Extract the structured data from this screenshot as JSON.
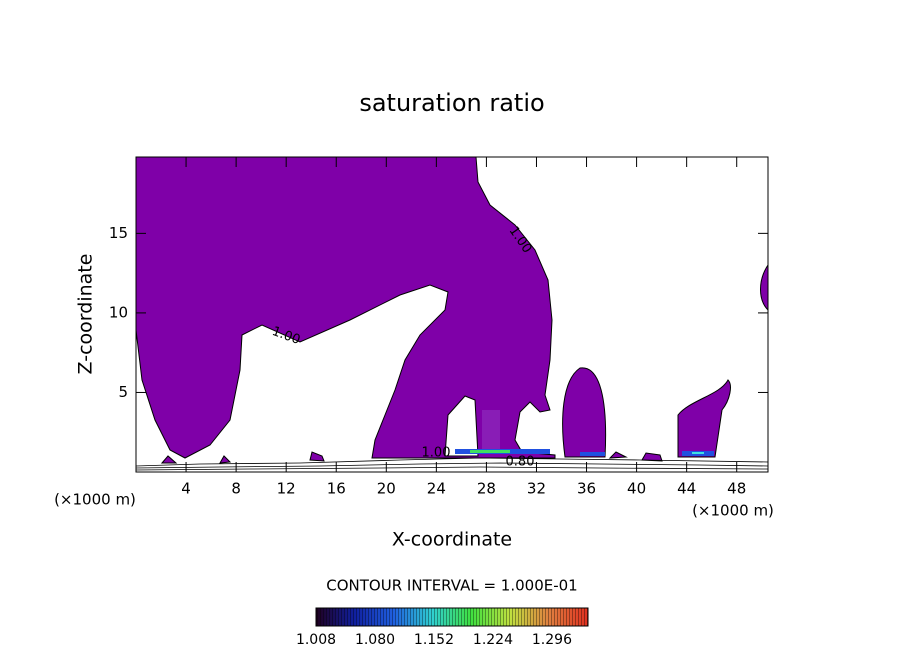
{
  "chart_data": {
    "type": "contour",
    "title": "saturation ratio",
    "x_label": "X-coordinate",
    "y_label": "Z-coordinate",
    "x_unit": "(×1000 m)",
    "y_unit": "(×1000 m)",
    "xlim": [
      0,
      50.5
    ],
    "ylim": [
      0,
      19.8
    ],
    "xticks": [
      4,
      8,
      12,
      16,
      20,
      24,
      28,
      32,
      36,
      40,
      44,
      48
    ],
    "yticks": [
      5,
      10,
      15
    ],
    "contour_labels": [
      "1.00",
      "1.00",
      "1.00",
      "0.80"
    ],
    "contour_interval": "CONTOUR INTERVAL = 1.000E-01",
    "fill_color": "#7f00a8",
    "colorbar": {
      "clim": [
        1.008,
        1.34
      ],
      "ticks": [
        1.008,
        {
          "value": 1.08,
          "label": "1.080"
        },
        1.152,
        1.224,
        1.296
      ],
      "colors": [
        "#200020",
        "#1020a0",
        "#2060e0",
        "#30d0d0",
        "#40e040",
        "#c0e040",
        "#e08040",
        "#e03020"
      ]
    }
  }
}
